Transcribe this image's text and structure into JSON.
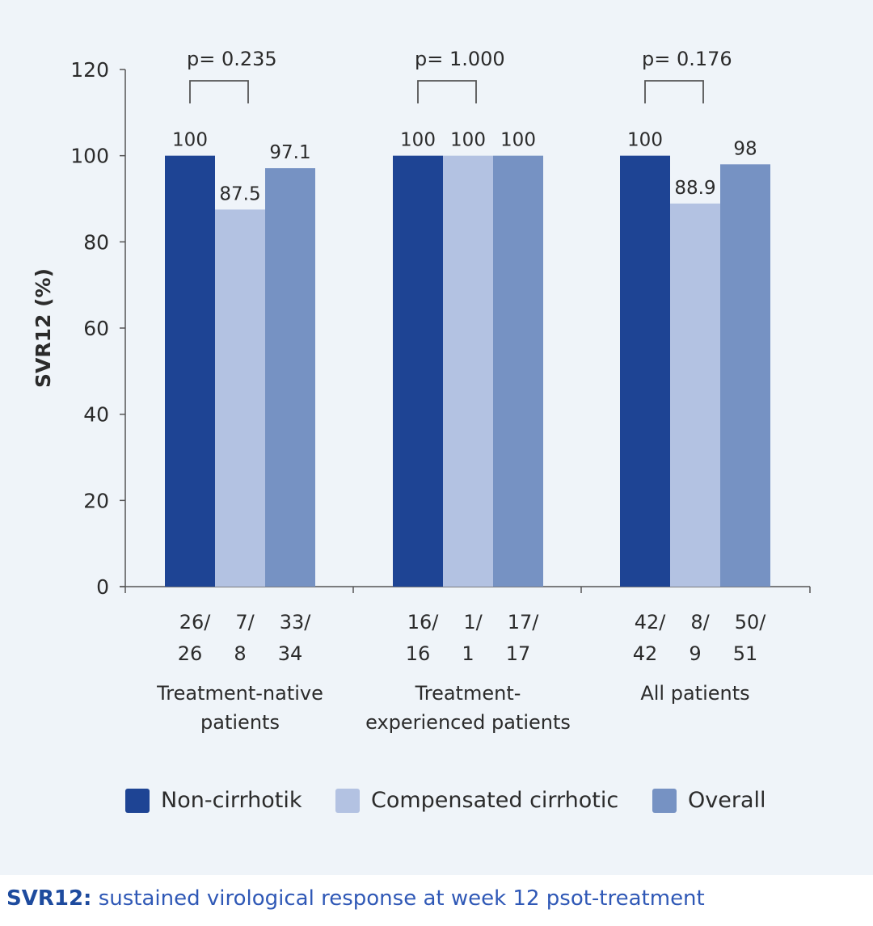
{
  "chart_data": {
    "type": "bar",
    "ylabel": "SVR12 (%)",
    "xlabel": "",
    "ylim": [
      0,
      120
    ],
    "yticks": [
      0,
      20,
      40,
      60,
      80,
      100,
      120
    ],
    "grid": false,
    "legend_position": "bottom",
    "groups": [
      {
        "label_lines": [
          "Treatment-native",
          "patients"
        ],
        "p_value": "p= 0.235",
        "bars": [
          {
            "series": "Non-cirrhotik",
            "value": 100,
            "label": "100",
            "count_lines": [
              "26/",
              "26"
            ]
          },
          {
            "series": "Compensated cirrhotic",
            "value": 87.5,
            "label": "87.5",
            "count_lines": [
              "7/",
              "8"
            ]
          },
          {
            "series": "Overall",
            "value": 97.1,
            "label": "97.1",
            "count_lines": [
              "33/",
              "34"
            ]
          }
        ]
      },
      {
        "label_lines": [
          "Treatment-",
          "experienced patients"
        ],
        "p_value": "p= 1.000",
        "bars": [
          {
            "series": "Non-cirrhotik",
            "value": 100,
            "label": "100",
            "count_lines": [
              "16/",
              "16"
            ]
          },
          {
            "series": "Compensated cirrhotic",
            "value": 100,
            "label": "100",
            "count_lines": [
              "1/",
              "1"
            ]
          },
          {
            "series": "Overall",
            "value": 100,
            "label": "100",
            "count_lines": [
              "17/",
              "17"
            ]
          }
        ]
      },
      {
        "label_lines": [
          "All patients"
        ],
        "p_value": "p= 0.176",
        "bars": [
          {
            "series": "Non-cirrhotik",
            "value": 100,
            "label": "100",
            "count_lines": [
              "42/",
              "42"
            ]
          },
          {
            "series": "Compensated cirrhotic",
            "value": 88.9,
            "label": "88.9",
            "count_lines": [
              "8/",
              "9"
            ]
          },
          {
            "series": "Overall",
            "value": 98,
            "label": "98",
            "count_lines": [
              "50/",
              "51"
            ]
          }
        ]
      }
    ],
    "series": [
      {
        "name": "Non-cirrhotik",
        "color": "#1e4494"
      },
      {
        "name": "Compensated cirrhotic",
        "color": "#b3c2e2"
      },
      {
        "name": "Overall",
        "color": "#7692c3"
      }
    ]
  },
  "footnote": {
    "term": "SVR12:",
    "text": " sustained virological response at week 12 psot-treatment"
  }
}
